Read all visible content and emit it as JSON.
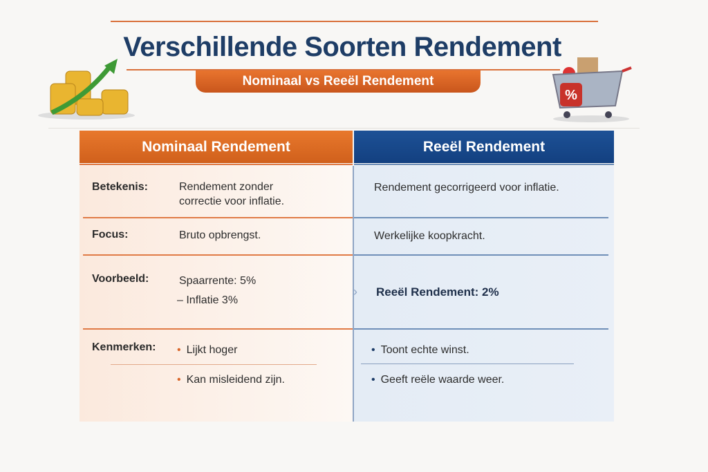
{
  "header": {
    "title": "Verschillende Soorten Rendement",
    "subtitle": "Nominaal vs Reeël Rendement"
  },
  "table": {
    "columns": [
      "Nominaal Rendement",
      "Reeël Rendement"
    ],
    "rows": [
      {
        "label": "Betekenis:",
        "nominal": [
          "Rendement zonder",
          "correctie voor inflatie."
        ],
        "real": [
          "Rendement gecorrigeerd voor inflatie."
        ]
      },
      {
        "label": "Focus:",
        "nominal": [
          "Bruto opbrengst."
        ],
        "real": [
          "Werkelijke koopkracht."
        ]
      },
      {
        "label": "Voorbeeld:",
        "nominal": [
          "Spaarrente: 5%",
          "– Inflatie 3%"
        ],
        "real": [
          "Reeël Rendement: 2%"
        ]
      },
      {
        "label": "Kenmerken:",
        "nominal": [
          "Lijkt hoger",
          "Kan misleidend zijn."
        ],
        "real": [
          "Toont echte winst.",
          "Geeft reële waarde weer."
        ]
      }
    ]
  },
  "icons": {
    "left": "gold-coins-growth-arrow-icon",
    "right": "shopping-cart-percent-icon"
  },
  "colors": {
    "orange": "#e0702a",
    "blue": "#1a4a8c",
    "title": "#1e3d66"
  }
}
